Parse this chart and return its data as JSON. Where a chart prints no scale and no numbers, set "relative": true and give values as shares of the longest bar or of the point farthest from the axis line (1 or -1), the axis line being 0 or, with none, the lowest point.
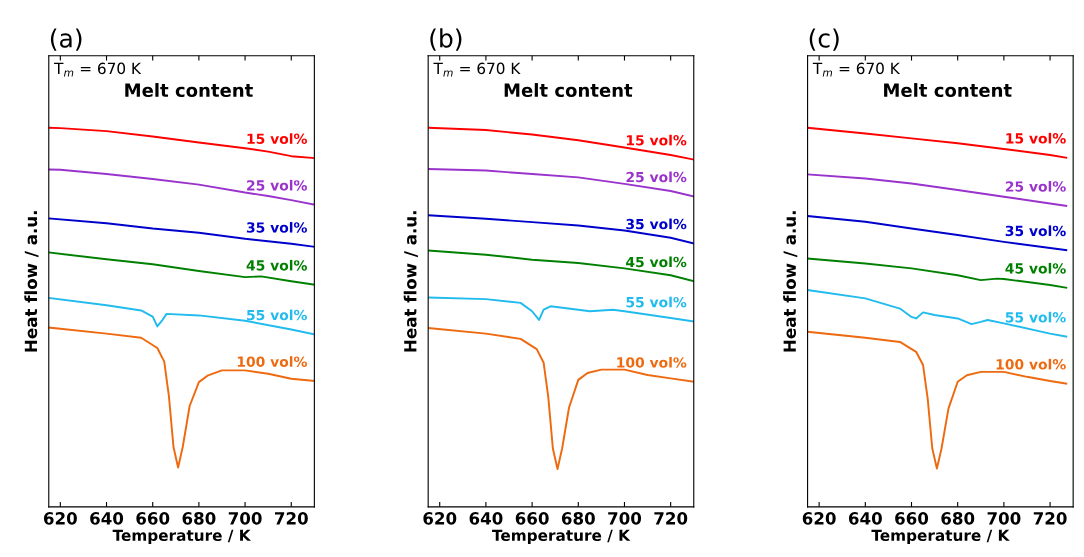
{
  "chart_data": [
    {
      "type": "line",
      "title": "(a)",
      "xlabel": "Temperature / K",
      "ylabel": "Heat flow / a.u.",
      "legend_title": "Melt content",
      "annotations": [
        "T$_{m}$ = 670 K"
      ],
      "relative": true,
      "xlim": [
        615,
        730
      ],
      "xticks": [
        620,
        640,
        660,
        680,
        700,
        720
      ],
      "grid": false,
      "legend": false,
      "series": [
        {
          "name": "15 vol%",
          "color": "#ff0000",
          "x": [
            615,
            620,
            640,
            660,
            680,
            700,
            710,
            720,
            730
          ],
          "values": [
            1.0,
            0.999,
            0.991,
            0.977,
            0.961,
            0.946,
            0.937,
            0.925,
            0.92
          ]
        },
        {
          "name": "25 vol%",
          "color": "#9933cc",
          "x": [
            615,
            620,
            640,
            660,
            680,
            700,
            710,
            720,
            730
          ],
          "values": [
            0.89,
            0.889,
            0.878,
            0.865,
            0.85,
            0.829,
            0.82,
            0.809,
            0.797
          ]
        },
        {
          "name": "35 vol%",
          "color": "#0000cc",
          "x": [
            615,
            640,
            660,
            680,
            700,
            720,
            730
          ],
          "values": [
            0.761,
            0.748,
            0.734,
            0.723,
            0.707,
            0.694,
            0.686
          ]
        },
        {
          "name": "45 vol%",
          "color": "#008000",
          "x": [
            615,
            640,
            660,
            680,
            700,
            707,
            720,
            730
          ],
          "values": [
            0.671,
            0.653,
            0.64,
            0.622,
            0.606,
            0.608,
            0.595,
            0.586
          ]
        },
        {
          "name": "55 vol%",
          "color": "#22bbee",
          "x": [
            615,
            640,
            655,
            660,
            662,
            664,
            666,
            680,
            700,
            720,
            730
          ],
          "values": [
            0.551,
            0.532,
            0.518,
            0.502,
            0.476,
            0.491,
            0.509,
            0.505,
            0.491,
            0.468,
            0.455
          ]
        },
        {
          "name": "100 vol%",
          "color": "#ee6a10",
          "x": [
            615,
            640,
            655,
            662,
            665,
            667,
            669,
            671,
            673,
            676,
            680,
            684,
            690,
            700,
            710,
            720,
            730
          ],
          "values": [
            0.473,
            0.457,
            0.446,
            0.419,
            0.383,
            0.293,
            0.158,
            0.104,
            0.158,
            0.266,
            0.329,
            0.347,
            0.36,
            0.36,
            0.351,
            0.338,
            0.332
          ]
        }
      ]
    },
    {
      "type": "line",
      "title": "(b)",
      "xlabel": "Temperature / K",
      "ylabel": "Heat flow / a.u.",
      "legend_title": "Melt content",
      "annotations": [
        "T$_{m}$ = 670 K"
      ],
      "relative": true,
      "xlim": [
        615,
        730
      ],
      "xticks": [
        620,
        640,
        660,
        680,
        700,
        720
      ],
      "grid": false,
      "legend": false,
      "series": [
        {
          "name": "15 vol%",
          "color": "#ff0000",
          "x": [
            615,
            640,
            660,
            680,
            700,
            720,
            730
          ],
          "values": [
            1.0,
            0.994,
            0.982,
            0.967,
            0.948,
            0.928,
            0.916
          ]
        },
        {
          "name": "25 vol%",
          "color": "#9933cc",
          "x": [
            615,
            640,
            660,
            680,
            700,
            720,
            730
          ],
          "values": [
            0.891,
            0.887,
            0.878,
            0.869,
            0.852,
            0.833,
            0.819
          ]
        },
        {
          "name": "35 vol%",
          "color": "#0000cc",
          "x": [
            615,
            640,
            660,
            680,
            700,
            720,
            730
          ],
          "values": [
            0.769,
            0.76,
            0.751,
            0.742,
            0.729,
            0.71,
            0.695
          ]
        },
        {
          "name": "45 vol%",
          "color": "#008000",
          "x": [
            615,
            640,
            660,
            680,
            700,
            720,
            730
          ],
          "values": [
            0.676,
            0.665,
            0.652,
            0.643,
            0.629,
            0.611,
            0.595
          ]
        },
        {
          "name": "55 vol%",
          "color": "#22bbee",
          "x": [
            615,
            640,
            655,
            660,
            663,
            665,
            668,
            680,
            685,
            695,
            700,
            720,
            730
          ],
          "values": [
            0.552,
            0.548,
            0.538,
            0.516,
            0.493,
            0.52,
            0.529,
            0.52,
            0.516,
            0.52,
            0.516,
            0.498,
            0.489
          ]
        },
        {
          "name": "100 vol%",
          "color": "#ee6a10",
          "x": [
            615,
            640,
            655,
            662,
            665,
            667,
            669,
            671,
            673,
            676,
            680,
            684,
            690,
            700,
            710,
            720,
            730
          ],
          "values": [
            0.472,
            0.457,
            0.443,
            0.416,
            0.38,
            0.29,
            0.154,
            0.1,
            0.154,
            0.262,
            0.335,
            0.353,
            0.362,
            0.362,
            0.348,
            0.339,
            0.33
          ]
        }
      ]
    },
    {
      "type": "line",
      "title": "(c)",
      "xlabel": "Temperature / K",
      "ylabel": "Heat flow / a.u.",
      "legend_title": "Melt content",
      "annotations": [
        "T$_{m}$ = 670 K"
      ],
      "relative": true,
      "xlim": [
        615,
        730
      ],
      "xticks": [
        620,
        640,
        660,
        680,
        700,
        720
      ],
      "grid": false,
      "legend": false,
      "series": [
        {
          "name": "15 vol%",
          "color": "#ff0000",
          "x": [
            615,
            640,
            660,
            680,
            700,
            720,
            727
          ],
          "values": [
            1.0,
            0.985,
            0.972,
            0.959,
            0.944,
            0.928,
            0.921
          ]
        },
        {
          "name": "25 vol%",
          "color": "#9933cc",
          "x": [
            615,
            640,
            660,
            680,
            700,
            720,
            727
          ],
          "values": [
            0.877,
            0.866,
            0.853,
            0.836,
            0.818,
            0.8,
            0.794
          ]
        },
        {
          "name": "35 vol%",
          "color": "#0000cc",
          "x": [
            615,
            640,
            660,
            680,
            700,
            720,
            727
          ],
          "values": [
            0.767,
            0.752,
            0.734,
            0.717,
            0.699,
            0.683,
            0.677
          ]
        },
        {
          "name": "45 vol%",
          "color": "#008000",
          "x": [
            615,
            640,
            660,
            680,
            690,
            697,
            700,
            720,
            727
          ],
          "values": [
            0.655,
            0.642,
            0.629,
            0.611,
            0.598,
            0.602,
            0.601,
            0.585,
            0.578
          ]
        },
        {
          "name": "55 vol%",
          "color": "#22bbee",
          "x": [
            615,
            640,
            655,
            660,
            662,
            665,
            670,
            680,
            686,
            690,
            693,
            700,
            720,
            727
          ],
          "values": [
            0.572,
            0.55,
            0.523,
            0.501,
            0.497,
            0.513,
            0.506,
            0.497,
            0.482,
            0.488,
            0.493,
            0.484,
            0.457,
            0.449
          ]
        },
        {
          "name": "100 vol%",
          "color": "#ee6a10",
          "x": [
            615,
            640,
            655,
            662,
            665,
            667,
            669,
            671,
            673,
            676,
            680,
            684,
            690,
            700,
            710,
            720,
            727
          ],
          "values": [
            0.462,
            0.446,
            0.435,
            0.409,
            0.374,
            0.286,
            0.154,
            0.101,
            0.154,
            0.259,
            0.33,
            0.347,
            0.356,
            0.356,
            0.343,
            0.332,
            0.325
          ]
        }
      ]
    }
  ]
}
